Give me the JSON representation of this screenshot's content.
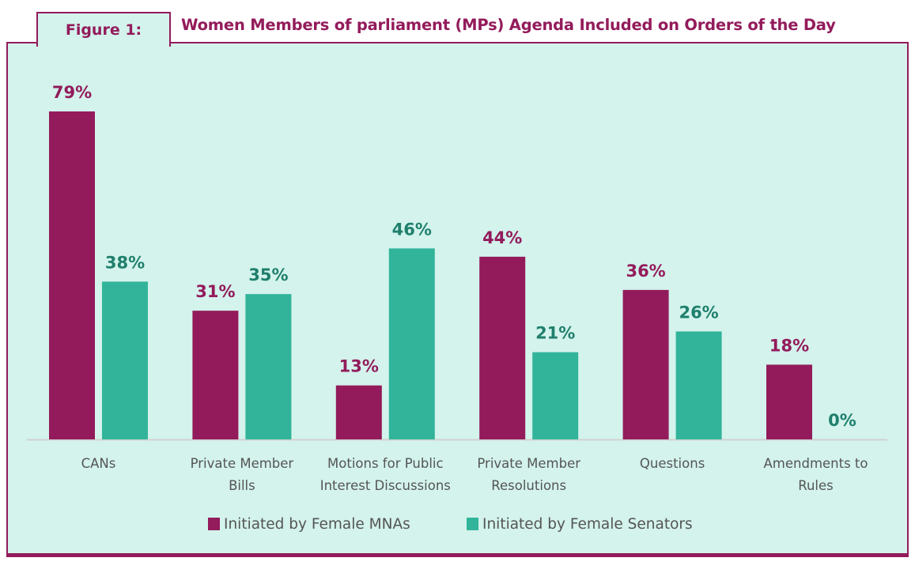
{
  "figure_label": "Figure 1:",
  "chart_data": {
    "type": "bar",
    "title": "Women Members of parliament (MPs) Agenda Included on Orders of the Day",
    "categories": [
      [
        "CANs"
      ],
      [
        "Private Member",
        "Bills"
      ],
      [
        "Motions for Public",
        "Interest Discussions"
      ],
      [
        "Private Member",
        "Resolutions"
      ],
      [
        "Questions"
      ],
      [
        "Amendments to",
        "Rules"
      ]
    ],
    "series": [
      {
        "name": "Initiated by Female MNAs",
        "color": "#931b5b",
        "values": [
          79,
          31,
          13,
          44,
          36,
          18
        ]
      },
      {
        "name": "Initiated by Female Senators",
        "color": "#31b49a",
        "values": [
          38,
          35,
          46,
          21,
          26,
          0
        ]
      }
    ],
    "value_suffix": "%",
    "label_colors": [
      "#931b5b",
      "#1f7f6c"
    ],
    "ylim": [
      0,
      80
    ],
    "grid": false,
    "legend_position": "bottom",
    "background": "#d3f3ec"
  }
}
